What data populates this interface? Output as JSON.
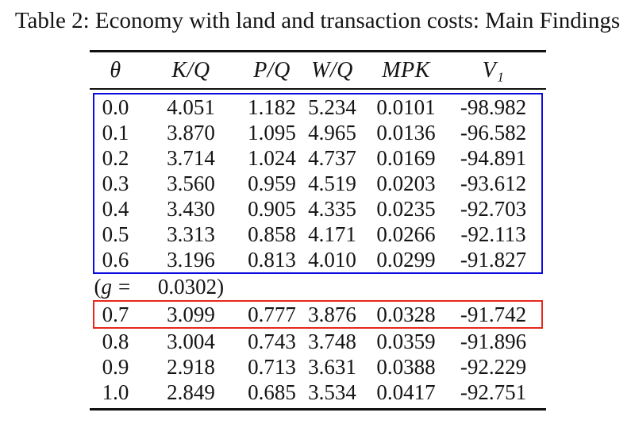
{
  "chart_data": {
    "type": "table",
    "title": "Table 2: Economy with land and transaction costs: Main Findings",
    "columns": [
      "θ",
      "K/Q",
      "P/Q",
      "W/Q",
      "MPK",
      "V₁"
    ],
    "groups": [
      {
        "highlight": "blue",
        "rows": [
          [
            "0.0",
            "4.051",
            "1.182",
            "5.234",
            "0.0101",
            "-98.982"
          ],
          [
            "0.1",
            "3.870",
            "1.095",
            "4.965",
            "0.0136",
            "-96.582"
          ],
          [
            "0.2",
            "3.714",
            "1.024",
            "4.737",
            "0.0169",
            "-94.891"
          ],
          [
            "0.3",
            "3.560",
            "0.959",
            "4.519",
            "0.0203",
            "-93.612"
          ],
          [
            "0.4",
            "3.430",
            "0.905",
            "4.335",
            "0.0235",
            "-92.703"
          ],
          [
            "0.5",
            "3.313",
            "0.858",
            "4.171",
            "0.0266",
            "-92.113"
          ],
          [
            "0.6",
            "3.196",
            "0.813",
            "4.010",
            "0.0299",
            "-91.827"
          ]
        ]
      },
      {
        "highlight": "red",
        "rows": [
          [
            "0.7",
            "3.099",
            "0.777",
            "3.876",
            "0.0328",
            "-91.742"
          ]
        ]
      },
      {
        "highlight": "none",
        "rows": [
          [
            "0.8",
            "3.004",
            "0.743",
            "3.748",
            "0.0359",
            "-91.896"
          ],
          [
            "0.9",
            "2.918",
            "0.713",
            "3.631",
            "0.0388",
            "-92.229"
          ],
          [
            "1.0",
            "2.849",
            "0.685",
            "3.534",
            "0.0417",
            "-92.751"
          ]
        ]
      }
    ],
    "annotation_row": {
      "open": "(",
      "variable": "g",
      "equals": "=",
      "value": "0.0302",
      "close": ")"
    },
    "highlight_colors": {
      "blue": "#0b0bdf",
      "red": "#e8271b"
    }
  }
}
